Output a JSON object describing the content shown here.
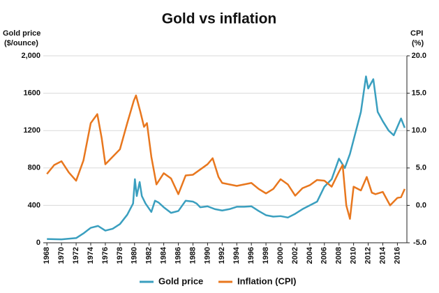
{
  "chart_data": {
    "type": "line",
    "title": "Gold vs inflation",
    "ylabel": [
      "Gold price",
      "($/ounce)"
    ],
    "y2label": [
      "CPI",
      "(%)"
    ],
    "xlim": [
      1967.5,
      2017.3
    ],
    "xticks": [
      1968,
      1970,
      1972,
      1974,
      1976,
      1978,
      1980,
      1982,
      1984,
      1986,
      1988,
      1990,
      1992,
      1994,
      1996,
      1998,
      2000,
      2002,
      2004,
      2006,
      2008,
      2010,
      2012,
      2014,
      2016
    ],
    "ylim": [
      0,
      2000
    ],
    "yticks": [
      0,
      400,
      800,
      1200,
      1600,
      {
        "value": 2000,
        "label": "2,000"
      }
    ],
    "y2lim": [
      -5,
      20
    ],
    "y2ticks": [
      {
        "value": -5,
        "label": "-5.0"
      },
      {
        "value": 0,
        "label": "0.0"
      },
      {
        "value": 5,
        "label": "5.0"
      },
      {
        "value": 10,
        "label": "10.0"
      },
      {
        "value": 15,
        "label": "15.0"
      },
      {
        "value": 20,
        "label": "20.0"
      }
    ],
    "grid": true,
    "legend": "bottom",
    "series": [
      {
        "name": "Gold price",
        "color": "#3a9fbf",
        "axis": "y",
        "x": [
          1968,
          1970,
          1972,
          1973,
          1974,
          1975,
          1976,
          1977,
          1978,
          1979,
          1979.8,
          1980.05,
          1980.3,
          1980.7,
          1981,
          1981.5,
          1982.3,
          1982.8,
          1983.3,
          1984,
          1985,
          1986,
          1987,
          1988,
          1988.5,
          1989,
          1990,
          1991,
          1992,
          1993,
          1994,
          1995,
          1996,
          1997,
          1998,
          1999,
          2000,
          2001,
          2002,
          2003,
          2004,
          2005,
          2006,
          2007,
          2008,
          2008.8,
          2009.5,
          2010,
          2010.5,
          2011,
          2011.7,
          2012,
          2012.7,
          2013.3,
          2014,
          2014.8,
          2015.5,
          2016.5,
          2017
        ],
        "values": [
          40,
          36,
          50,
          100,
          160,
          180,
          130,
          150,
          200,
          300,
          420,
          680,
          500,
          650,
          500,
          420,
          330,
          450,
          430,
          380,
          320,
          340,
          450,
          440,
          420,
          380,
          390,
          360,
          345,
          360,
          385,
          385,
          390,
          340,
          295,
          280,
          285,
          270,
          310,
          360,
          400,
          440,
          600,
          680,
          900,
          800,
          950,
          1100,
          1250,
          1400,
          1780,
          1650,
          1750,
          1400,
          1300,
          1200,
          1150,
          1330,
          1230
        ]
      },
      {
        "name": "Inflation (CPI)",
        "color": "#e8771e",
        "axis": "y2",
        "x": [
          1968,
          1969,
          1970,
          1971,
          1972,
          1973,
          1974,
          1974.9,
          1975.5,
          1976,
          1977,
          1978,
          1979,
          1979.9,
          1980.2,
          1980.8,
          1981.3,
          1981.7,
          1982.3,
          1983,
          1984,
          1985,
          1986,
          1987,
          1988,
          1989,
          1990,
          1990.7,
          1991.5,
          1992,
          1993,
          1994,
          1995,
          1996,
          1997,
          1998,
          1999,
          2000,
          2001,
          2002,
          2003,
          2004,
          2005,
          2006,
          2007,
          2008,
          2008.5,
          2009,
          2009.5,
          2010,
          2011,
          2011.8,
          2012.5,
          2013,
          2014,
          2015,
          2016,
          2016.5,
          2017
        ],
        "values": [
          4.2,
          5.4,
          5.9,
          4.4,
          3.3,
          6.0,
          11.0,
          12.2,
          9.0,
          5.5,
          6.5,
          7.5,
          11.0,
          14.0,
          14.7,
          12.5,
          10.5,
          11.0,
          6.5,
          2.8,
          4.3,
          3.6,
          1.5,
          4.0,
          4.1,
          4.8,
          5.5,
          6.3,
          3.8,
          3.0,
          2.8,
          2.6,
          2.8,
          3.0,
          2.2,
          1.6,
          2.2,
          3.5,
          2.8,
          1.3,
          2.3,
          2.7,
          3.4,
          3.3,
          2.5,
          4.5,
          5.4,
          0.0,
          -1.8,
          2.5,
          2.0,
          3.8,
          1.7,
          1.5,
          1.8,
          0.0,
          1.0,
          1.1,
          2.2
        ]
      }
    ]
  }
}
